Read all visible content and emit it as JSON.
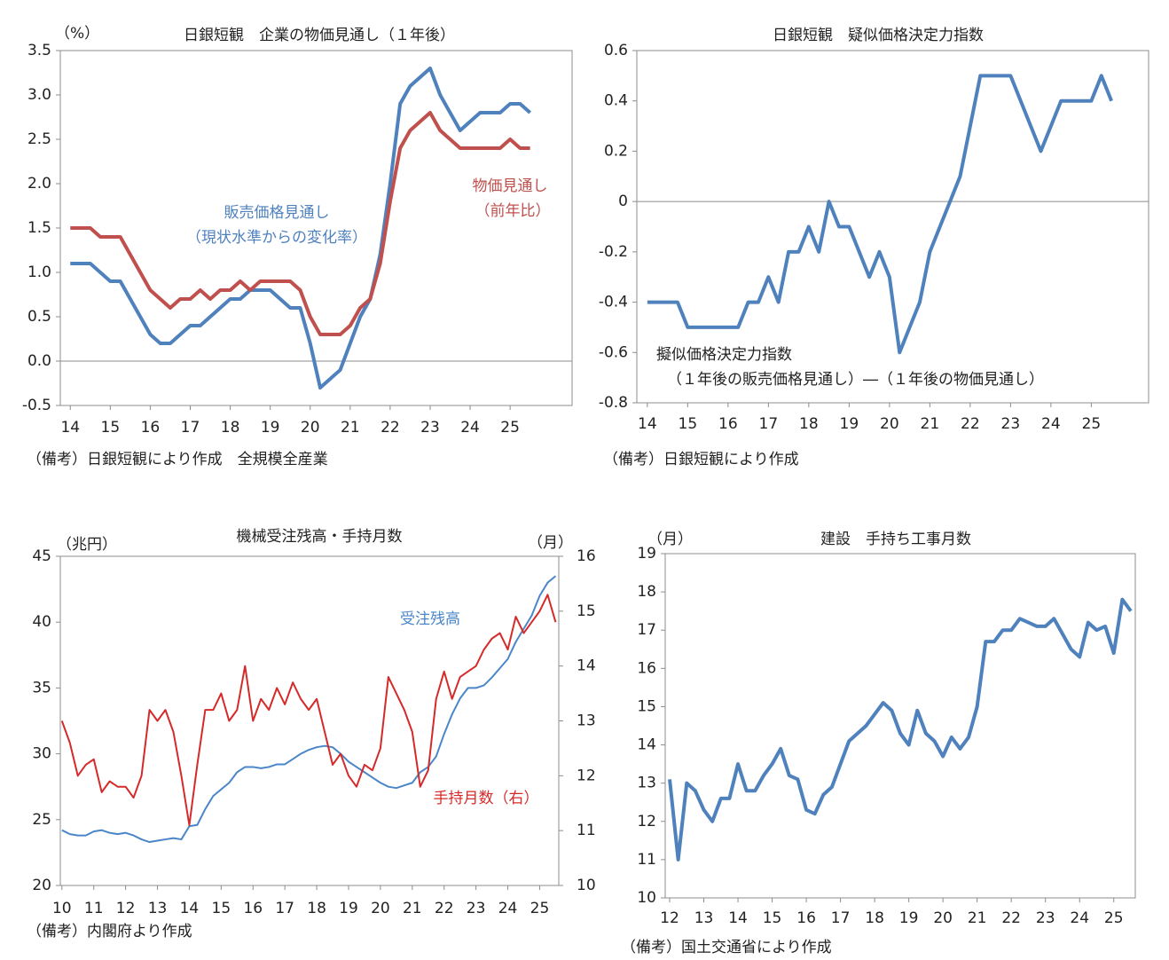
{
  "chart_data": [
    {
      "type": "line",
      "title": "日銀短観　企業の物価見通し（１年後）",
      "y_unit": "（%）",
      "note": "（備考）日銀短観により作成　全規模全産業",
      "x": [
        14,
        14.25,
        14.5,
        14.75,
        15,
        15.25,
        15.5,
        15.75,
        16,
        16.25,
        16.5,
        16.75,
        17,
        17.25,
        17.5,
        17.75,
        18,
        18.25,
        18.5,
        18.75,
        19,
        19.25,
        19.5,
        19.75,
        20,
        20.25,
        20.5,
        20.75,
        21,
        21.25,
        21.5,
        21.75,
        22,
        22.25,
        22.5,
        22.75,
        23,
        23.25,
        23.5,
        23.75,
        24,
        24.25,
        24.5,
        24.75,
        25,
        25.25,
        25.5
      ],
      "xlim": [
        13.75,
        26.55
      ],
      "xticks": [
        14,
        15,
        16,
        17,
        18,
        19,
        20,
        21,
        22,
        23,
        24,
        25
      ],
      "ylim": [
        -0.5,
        3.5
      ],
      "yticks": [
        -0.5,
        {
          "value": 0,
          "label": "0.0"
        },
        0.5,
        {
          "value": 1,
          "label": "1.0"
        },
        1.5,
        {
          "value": 2,
          "label": "2.0"
        },
        2.5,
        {
          "value": 3,
          "label": "3.0"
        },
        3.5
      ],
      "zero_line": true,
      "series": [
        {
          "name": "販売価格見通し",
          "name_note": "（現状水準からの変化率）",
          "color": "#4f81bd",
          "values": [
            1.1,
            1.1,
            1.1,
            1.0,
            0.9,
            0.9,
            0.7,
            0.5,
            0.3,
            0.2,
            0.2,
            0.3,
            0.4,
            0.4,
            0.5,
            0.6,
            0.7,
            0.7,
            0.8,
            0.8,
            0.8,
            0.7,
            0.6,
            0.6,
            0.2,
            -0.3,
            -0.2,
            -0.1,
            0.2,
            0.5,
            0.7,
            1.2,
            2.0,
            2.9,
            3.1,
            3.2,
            3.3,
            3.0,
            2.8,
            2.6,
            2.7,
            2.8,
            2.8,
            2.8,
            2.9,
            2.9,
            2.8
          ]
        },
        {
          "name": "物価見通し",
          "name_note": "（前年比）",
          "color": "#c0504d",
          "values": [
            1.5,
            1.5,
            1.5,
            1.4,
            1.4,
            1.4,
            1.2,
            1.0,
            0.8,
            0.7,
            0.6,
            0.7,
            0.7,
            0.8,
            0.7,
            0.8,
            0.8,
            0.9,
            0.8,
            0.9,
            0.9,
            0.9,
            0.9,
            0.8,
            0.5,
            0.3,
            0.3,
            0.3,
            0.4,
            0.6,
            0.7,
            1.1,
            1.8,
            2.4,
            2.6,
            2.7,
            2.8,
            2.6,
            2.5,
            2.4,
            2.4,
            2.4,
            2.4,
            2.4,
            2.5,
            2.4,
            2.4
          ]
        }
      ]
    },
    {
      "type": "line",
      "title": "日銀短観　疑似価格決定力指数",
      "note": "（備考）日銀短観により作成",
      "x": [
        14,
        14.25,
        14.5,
        14.75,
        15,
        15.25,
        15.5,
        15.75,
        16,
        16.25,
        16.5,
        16.75,
        17,
        17.25,
        17.5,
        17.75,
        18,
        18.25,
        18.5,
        18.75,
        19,
        19.25,
        19.5,
        19.75,
        20,
        20.25,
        20.5,
        20.75,
        21,
        21.25,
        21.5,
        21.75,
        22,
        22.25,
        22.5,
        22.75,
        23,
        23.25,
        23.5,
        23.75,
        24,
        24.25,
        24.5,
        24.75,
        25,
        25.25,
        25.5
      ],
      "xlim": [
        13.74,
        26.42
      ],
      "xticks": [
        14,
        15,
        16,
        17,
        18,
        19,
        20,
        21,
        22,
        23,
        24,
        25
      ],
      "ylim": [
        -0.8,
        0.6
      ],
      "yticks": [
        -0.8,
        -0.6,
        -0.4,
        -0.2,
        0,
        0.2,
        0.4,
        0.6
      ],
      "zero_line": true,
      "series": [
        {
          "name": "擬似価格決定力指数",
          "name_note": "（１年後の販売価格見通し）―（１年後の物価見通し）",
          "color": "#4f81bd",
          "values": [
            -0.4,
            -0.4,
            -0.4,
            -0.4,
            -0.5,
            -0.5,
            -0.5,
            -0.5,
            -0.5,
            -0.5,
            -0.4,
            -0.4,
            -0.3,
            -0.4,
            -0.2,
            -0.2,
            -0.1,
            -0.2,
            0,
            -0.1,
            -0.1,
            -0.2,
            -0.3,
            -0.2,
            -0.3,
            -0.6,
            -0.5,
            -0.4,
            -0.2,
            -0.1,
            0,
            0.1,
            0.3,
            0.5,
            0.5,
            0.5,
            0.5,
            0.4,
            0.3,
            0.2,
            0.3,
            0.4,
            0.4,
            0.4,
            0.4,
            0.5,
            0.4
          ]
        }
      ]
    },
    {
      "type": "line",
      "title": "機械受注残高・手持月数",
      "y_unit": "（兆円）",
      "y2_unit": "（月）",
      "note": "（備考）内閣府より作成",
      "x": [
        10,
        10.25,
        10.5,
        10.75,
        11,
        11.25,
        11.5,
        11.75,
        12,
        12.25,
        12.5,
        12.75,
        13,
        13.25,
        13.5,
        13.75,
        14,
        14.25,
        14.5,
        14.75,
        15,
        15.25,
        15.5,
        15.75,
        16,
        16.25,
        16.5,
        16.75,
        17,
        17.25,
        17.5,
        17.75,
        18,
        18.25,
        18.5,
        18.75,
        19,
        19.25,
        19.5,
        19.75,
        20,
        20.25,
        20.5,
        20.75,
        21,
        21.25,
        21.5,
        21.75,
        22,
        22.25,
        22.5,
        22.75,
        23,
        23.25,
        23.5,
        23.75,
        24,
        24.25,
        24.5,
        24.75,
        25,
        25.25,
        25.5
      ],
      "xlim": [
        9.95,
        25.6
      ],
      "xticks": [
        10,
        11,
        12,
        13,
        14,
        15,
        16,
        17,
        18,
        19,
        20,
        21,
        22,
        23,
        24,
        25
      ],
      "ylim": [
        20,
        45
      ],
      "yticks": [
        20,
        25,
        30,
        35,
        40,
        45
      ],
      "y2lim": [
        10,
        16
      ],
      "y2ticks": [
        10,
        11,
        12,
        13,
        14,
        15,
        16
      ],
      "series": [
        {
          "name": "受注残高",
          "color": "#4a86c8",
          "values": [
            24.2,
            23.9,
            23.8,
            23.8,
            24.1,
            24.2,
            24.0,
            23.9,
            24.0,
            23.8,
            23.5,
            23.3,
            23.4,
            23.5,
            23.6,
            23.5,
            24.5,
            24.6,
            25.8,
            26.8,
            27.3,
            27.8,
            28.6,
            29.0,
            29.0,
            28.9,
            29.0,
            29.2,
            29.2,
            29.6,
            30.0,
            30.3,
            30.5,
            30.6,
            30.5,
            30.0,
            29.4,
            29.0,
            28.6,
            28.2,
            27.8,
            27.5,
            27.4,
            27.6,
            27.8,
            28.6,
            29.0,
            29.8,
            31.5,
            33.0,
            34.2,
            35.0,
            35.0,
            35.2,
            35.8,
            36.5,
            37.2,
            38.5,
            39.5,
            40.5,
            42.0,
            43.0,
            43.5
          ]
        },
        {
          "name": "手持月数（右）",
          "color": "#d42a2a",
          "axis": "y2",
          "values": [
            13.0,
            12.6,
            12.0,
            12.2,
            12.3,
            11.7,
            11.9,
            11.8,
            11.8,
            11.6,
            12.0,
            13.2,
            13.0,
            13.2,
            12.8,
            12.0,
            11.1,
            12.2,
            13.2,
            13.2,
            13.5,
            13.0,
            13.2,
            14.0,
            13.0,
            13.4,
            13.2,
            13.6,
            13.3,
            13.7,
            13.4,
            13.2,
            13.4,
            12.8,
            12.2,
            12.4,
            12.0,
            11.8,
            12.2,
            12.1,
            12.5,
            13.8,
            13.5,
            13.2,
            12.8,
            11.8,
            12.1,
            13.4,
            13.9,
            13.4,
            13.8,
            13.9,
            14.0,
            14.3,
            14.5,
            14.6,
            14.3,
            14.9,
            14.6,
            14.8,
            15.0,
            15.3,
            14.8
          ]
        }
      ]
    },
    {
      "type": "line",
      "title": "建設　手持ち工事月数",
      "y_unit": "（月）",
      "note": "（備考）国土交通省により作成",
      "x": [
        12,
        12.25,
        12.5,
        12.75,
        13,
        13.25,
        13.5,
        13.75,
        14,
        14.25,
        14.5,
        14.75,
        15,
        15.25,
        15.5,
        15.75,
        16,
        16.25,
        16.5,
        16.75,
        17,
        17.25,
        17.5,
        17.75,
        18,
        18.25,
        18.5,
        18.75,
        19,
        19.25,
        19.5,
        19.75,
        20,
        20.25,
        20.5,
        20.75,
        21,
        21.25,
        21.5,
        21.75,
        22,
        22.25,
        22.5,
        22.75,
        23,
        23.25,
        23.5,
        23.75,
        24,
        24.25,
        24.5,
        24.75,
        25,
        25.25,
        25.5
      ],
      "xlim": [
        11.87,
        25.63
      ],
      "xticks": [
        12,
        13,
        14,
        15,
        16,
        17,
        18,
        19,
        20,
        21,
        22,
        23,
        24,
        25
      ],
      "ylim": [
        10,
        19
      ],
      "yticks": [
        10,
        11,
        12,
        13,
        14,
        15,
        16,
        17,
        18,
        19
      ],
      "series": [
        {
          "color": "#4f81bd",
          "values": [
            13.1,
            11.0,
            13.0,
            12.8,
            12.3,
            12.0,
            12.6,
            12.6,
            13.5,
            12.8,
            12.8,
            13.2,
            13.5,
            13.9,
            13.2,
            13.1,
            12.3,
            12.2,
            12.7,
            12.9,
            13.5,
            14.1,
            14.3,
            14.5,
            14.8,
            15.1,
            14.9,
            14.3,
            14.0,
            14.9,
            14.3,
            14.1,
            13.7,
            14.2,
            13.9,
            14.2,
            15.0,
            16.7,
            16.7,
            17.0,
            17.0,
            17.3,
            17.2,
            17.1,
            17.1,
            17.3,
            16.9,
            16.5,
            16.3,
            17.2,
            17.0,
            17.1,
            16.4,
            17.8,
            17.5
          ]
        }
      ]
    }
  ]
}
